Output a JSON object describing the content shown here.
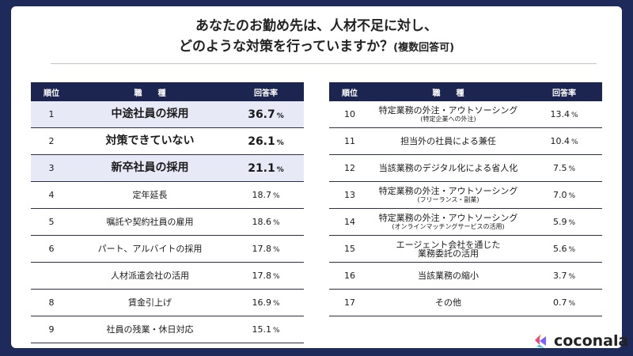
{
  "title": {
    "line1": "あなたのお勤め先は、人材不足に対し、",
    "line2": "どのような対策を行っていますか？",
    "line2_sub": "(複数回答可)"
  },
  "table_headers": {
    "rank": "順位",
    "job": "職　　種",
    "rate": "回答率"
  },
  "percent_sign": "%",
  "left_rows": [
    {
      "rank": "1",
      "job": "中途社員の採用",
      "value": "36.7"
    },
    {
      "rank": "2",
      "job": "対策できていない",
      "value": "26.1"
    },
    {
      "rank": "3",
      "job": "新卒社員の採用",
      "value": "21.1"
    },
    {
      "rank": "4",
      "job": "定年延長",
      "value": "18.7"
    },
    {
      "rank": "5",
      "job": "嘱託や契約社員の雇用",
      "value": "18.6"
    },
    {
      "rank": "6",
      "job": "パート、アルバイトの採用",
      "value": "17.8"
    },
    {
      "rank": "",
      "job": "人材派遣会社の活用",
      "value": "17.8"
    },
    {
      "rank": "8",
      "job": "賃金引上げ",
      "value": "16.9"
    },
    {
      "rank": "9",
      "job": "社員の残業・休日対応",
      "value": "15.1"
    }
  ],
  "right_rows": [
    {
      "rank": "10",
      "job": "特定業務の外注・アウトソーシング",
      "note": "(特定企業への外注)",
      "value": "13.4"
    },
    {
      "rank": "11",
      "job": "担当外の社員による兼任",
      "note": "",
      "value": "10.4"
    },
    {
      "rank": "12",
      "job": "当該業務のデジタル化による省人化",
      "note": "",
      "value": "7.5"
    },
    {
      "rank": "13",
      "job": "特定業務の外注・アウトソーシング",
      "note": "(フリーランス・副業)",
      "value": "7.0"
    },
    {
      "rank": "14",
      "job": "特定業務の外注・アウトソーシング",
      "note": "(オンラインマッチングサービスの活用)",
      "value": "5.9"
    },
    {
      "rank": "15",
      "job": "エージェント会社を通じた",
      "note": "業務委託の活用",
      "value": "5.6"
    },
    {
      "rank": "16",
      "job": "当該業務の縮小",
      "note": "",
      "value": "3.7"
    },
    {
      "rank": "17",
      "job": "その他",
      "note": "",
      "value": "0.7"
    }
  ],
  "logo": {
    "text": "coconala"
  },
  "colors": {
    "header_bg": "#1c2450",
    "highlight_bg": "#e7e9f6",
    "frame": "#1e2a5a"
  }
}
